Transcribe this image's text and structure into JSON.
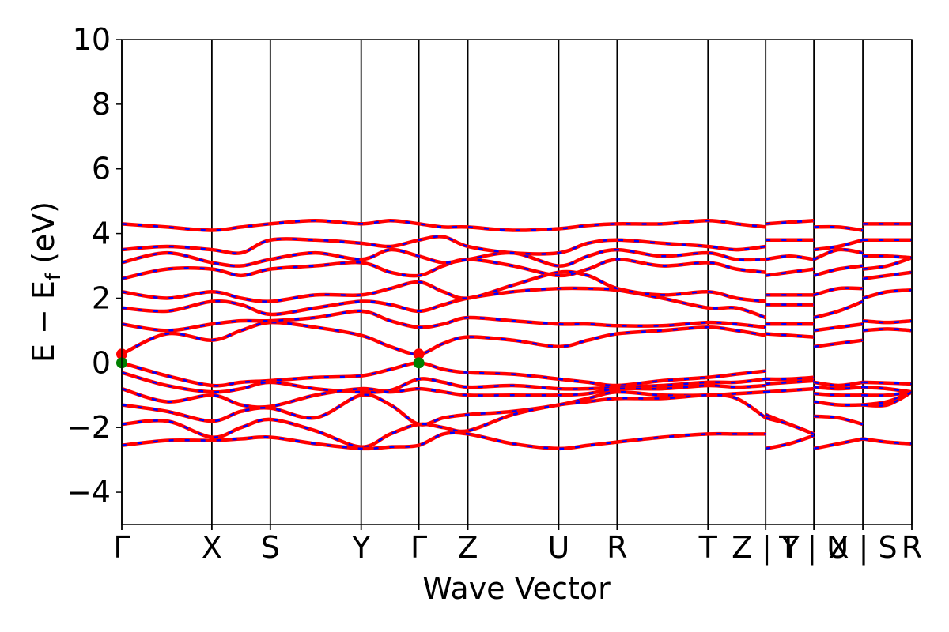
{
  "chart_data": {
    "type": "line",
    "xlabel": "Wave Vector",
    "ylabel": {
      "main": "E − E",
      "sub": "f",
      "unit": "(eV)"
    },
    "xlim": [
      0,
      1
    ],
    "ylim": [
      -5,
      10
    ],
    "xticks": [
      {
        "value": 0,
        "label": "Γ"
      },
      {
        "value": 0.114,
        "label": "X"
      },
      {
        "value": 0.188,
        "label": "S"
      },
      {
        "value": 0.303,
        "label": "Y"
      },
      {
        "value": 0.376,
        "label": "Γ"
      },
      {
        "value": 0.438,
        "label": "Z"
      },
      {
        "value": 0.553,
        "label": "U"
      },
      {
        "value": 0.627,
        "label": "R"
      },
      {
        "value": 0.742,
        "label": "T"
      },
      {
        "value": 0.815,
        "label": "Z | Y"
      },
      {
        "value": 0.876,
        "label": "T | U"
      },
      {
        "value": 0.938,
        "label": "X | S"
      },
      {
        "value": 1,
        "label": "R"
      }
    ],
    "yticks": [
      {
        "value": -4,
        "label": "−4"
      },
      {
        "value": -2,
        "label": "−2"
      },
      0,
      2,
      4,
      6,
      8,
      10
    ],
    "line_color": "red",
    "overlay_color": "blue",
    "x": [
      0,
      0.057,
      0.114,
      0.151,
      0.188,
      0.245,
      0.303,
      0.34,
      0.376,
      0.407,
      0.438,
      0.495,
      0.553,
      0.59,
      0.627,
      0.684,
      0.742,
      0.778,
      0.815,
      0.815,
      0.815,
      0.845,
      0.876,
      0.876,
      0.876,
      0.907,
      0.938,
      0.938,
      0.938,
      0.969,
      1
    ],
    "series": [
      {
        "values": [
          0,
          -0.4,
          -0.7,
          -0.6,
          -0.55,
          -0.45,
          -0.4,
          -0.2,
          0,
          -0.2,
          -0.3,
          -0.35,
          -0.5,
          -0.6,
          -0.7,
          -0.55,
          -0.45,
          -0.35,
          -0.25,
          null,
          -0.5,
          -0.5,
          -0.45,
          null,
          -0.6,
          -0.7,
          -0.6,
          null,
          -0.6,
          -0.62,
          -0.65
        ]
      },
      {
        "values": [
          -0.3,
          -0.7,
          -0.9,
          -0.8,
          -0.6,
          -0.8,
          -0.9,
          -0.85,
          -0.5,
          -0.6,
          -0.75,
          -0.7,
          -0.8,
          -0.8,
          -0.75,
          -0.7,
          -0.6,
          -0.6,
          -0.5,
          null,
          -0.65,
          -0.6,
          -0.55,
          null,
          -0.75,
          -0.8,
          -0.75,
          null,
          -0.75,
          -0.8,
          -0.9
        ]
      },
      {
        "values": [
          -0.8,
          -1.2,
          -1.0,
          -1.3,
          -1.35,
          -1.0,
          -0.8,
          -0.9,
          -0.8,
          -0.9,
          -1.0,
          -1.0,
          -1.0,
          -0.95,
          -0.8,
          -0.8,
          -0.7,
          -0.75,
          -0.7,
          null,
          -0.9,
          -0.85,
          -0.8,
          null,
          -0.95,
          -1.0,
          -1.0,
          null,
          -1.0,
          -1.0,
          -0.9
        ]
      },
      {
        "values": [
          -1.3,
          -1.5,
          -1.8,
          -1.5,
          -1.4,
          -1.7,
          -1.0,
          -1.3,
          -1.9,
          -1.7,
          -1.6,
          -1.5,
          -1.3,
          -1.1,
          -0.9,
          -1.0,
          -1.0,
          -0.95,
          -0.9,
          null,
          -1.6,
          -1.9,
          -2.2,
          null,
          -1.2,
          -1.3,
          -1.3,
          null,
          -1.3,
          -1.2,
          -0.9
        ]
      },
      {
        "values": [
          -1.9,
          -1.8,
          -2.3,
          -2.0,
          -1.75,
          -2.1,
          -2.6,
          -2.2,
          -1.9,
          -2.0,
          -2.1,
          -1.6,
          -1.3,
          -1.2,
          -1.1,
          -1.1,
          -1.0,
          -1.1,
          -1.7,
          null,
          -1.7,
          -1.9,
          -2.2,
          null,
          -1.65,
          -1.7,
          -1.9,
          null,
          -1.3,
          -1.3,
          -0.9
        ]
      },
      {
        "values": [
          -2.55,
          -2.4,
          -2.4,
          -2.35,
          -2.3,
          -2.5,
          -2.65,
          -2.6,
          -2.55,
          -2.2,
          -2.2,
          -2.5,
          -2.65,
          -2.55,
          -2.45,
          -2.3,
          -2.2,
          -2.2,
          -2.2,
          null,
          -2.65,
          -2.5,
          -2.25,
          null,
          -2.65,
          -2.5,
          -2.35,
          null,
          -2.35,
          -2.45,
          -2.5
        ]
      },
      {
        "values": [
          0.27,
          0.9,
          0.7,
          1.0,
          1.25,
          1.1,
          0.85,
          0.5,
          0.27,
          0.6,
          0.8,
          0.7,
          0.5,
          0.7,
          0.9,
          1.0,
          1.1,
          1.0,
          0.85,
          null,
          0.9,
          0.85,
          0.8,
          null,
          0.5,
          0.6,
          0.7,
          null,
          1.0,
          1.05,
          1.0
        ]
      },
      {
        "values": [
          1.2,
          1.0,
          1.2,
          1.3,
          1.3,
          1.4,
          1.6,
          1.3,
          1.1,
          1.2,
          1.4,
          1.3,
          1.2,
          1.2,
          1.15,
          1.15,
          1.25,
          1.2,
          1.1,
          null,
          1.2,
          1.2,
          1.2,
          null,
          1.0,
          1.1,
          1.2,
          null,
          1.3,
          1.25,
          1.3
        ]
      },
      {
        "values": [
          1.7,
          1.6,
          1.9,
          1.8,
          1.5,
          1.7,
          1.9,
          1.8,
          1.6,
          1.8,
          2.0,
          2.2,
          2.3,
          2.3,
          2.25,
          2.0,
          1.7,
          1.7,
          1.4,
          null,
          1.8,
          1.8,
          1.8,
          null,
          1.4,
          1.6,
          1.9,
          null,
          2.0,
          2.2,
          2.25
        ]
      },
      {
        "values": [
          2.2,
          2.0,
          2.2,
          2.0,
          1.9,
          2.1,
          2.1,
          2.3,
          2.5,
          2.2,
          2.0,
          2.4,
          2.8,
          2.7,
          2.3,
          2.1,
          2.2,
          2.0,
          1.9,
          null,
          2.1,
          2.1,
          2.1,
          null,
          2.1,
          2.3,
          2.3,
          null,
          2.6,
          2.7,
          2.8
        ]
      },
      {
        "values": [
          2.6,
          2.9,
          2.9,
          2.7,
          2.9,
          3.0,
          3.1,
          2.8,
          2.7,
          3.0,
          3.2,
          3.0,
          2.7,
          2.9,
          3.2,
          3.0,
          3.1,
          2.9,
          2.8,
          null,
          2.7,
          2.8,
          2.9,
          null,
          2.7,
          2.9,
          3.0,
          null,
          2.9,
          3.0,
          3.25
        ]
      },
      {
        "values": [
          3.1,
          3.4,
          3.1,
          3.0,
          3.2,
          3.4,
          3.2,
          3.5,
          3.3,
          3.1,
          3.2,
          3.4,
          3.0,
          3.3,
          3.5,
          3.3,
          3.4,
          3.2,
          3.2,
          null,
          3.2,
          3.3,
          3.2,
          null,
          3.2,
          3.5,
          3.4,
          null,
          3.3,
          3.3,
          3.25
        ]
      },
      {
        "values": [
          3.5,
          3.6,
          3.5,
          3.4,
          3.8,
          3.8,
          3.7,
          3.6,
          3.8,
          3.9,
          3.6,
          3.4,
          3.4,
          3.7,
          3.8,
          3.7,
          3.6,
          3.5,
          3.6,
          null,
          3.8,
          3.8,
          3.8,
          null,
          3.5,
          3.6,
          3.8,
          null,
          3.8,
          3.8,
          3.8
        ]
      },
      {
        "values": [
          4.3,
          4.2,
          4.1,
          4.2,
          4.3,
          4.4,
          4.3,
          4.4,
          4.3,
          4.2,
          4.2,
          4.1,
          4.15,
          4.25,
          4.3,
          4.3,
          4.4,
          4.3,
          4.2,
          null,
          4.3,
          4.35,
          4.4,
          null,
          4.2,
          4.2,
          4.1,
          null,
          4.3,
          4.3,
          4.3
        ]
      }
    ],
    "vbm": {
      "x": [
        0,
        0.376
      ],
      "values": [
        0,
        0
      ],
      "color": "green"
    },
    "cbm": {
      "x": [
        0,
        0.376
      ],
      "values": [
        0.27,
        0.27
      ],
      "color": "red"
    }
  }
}
